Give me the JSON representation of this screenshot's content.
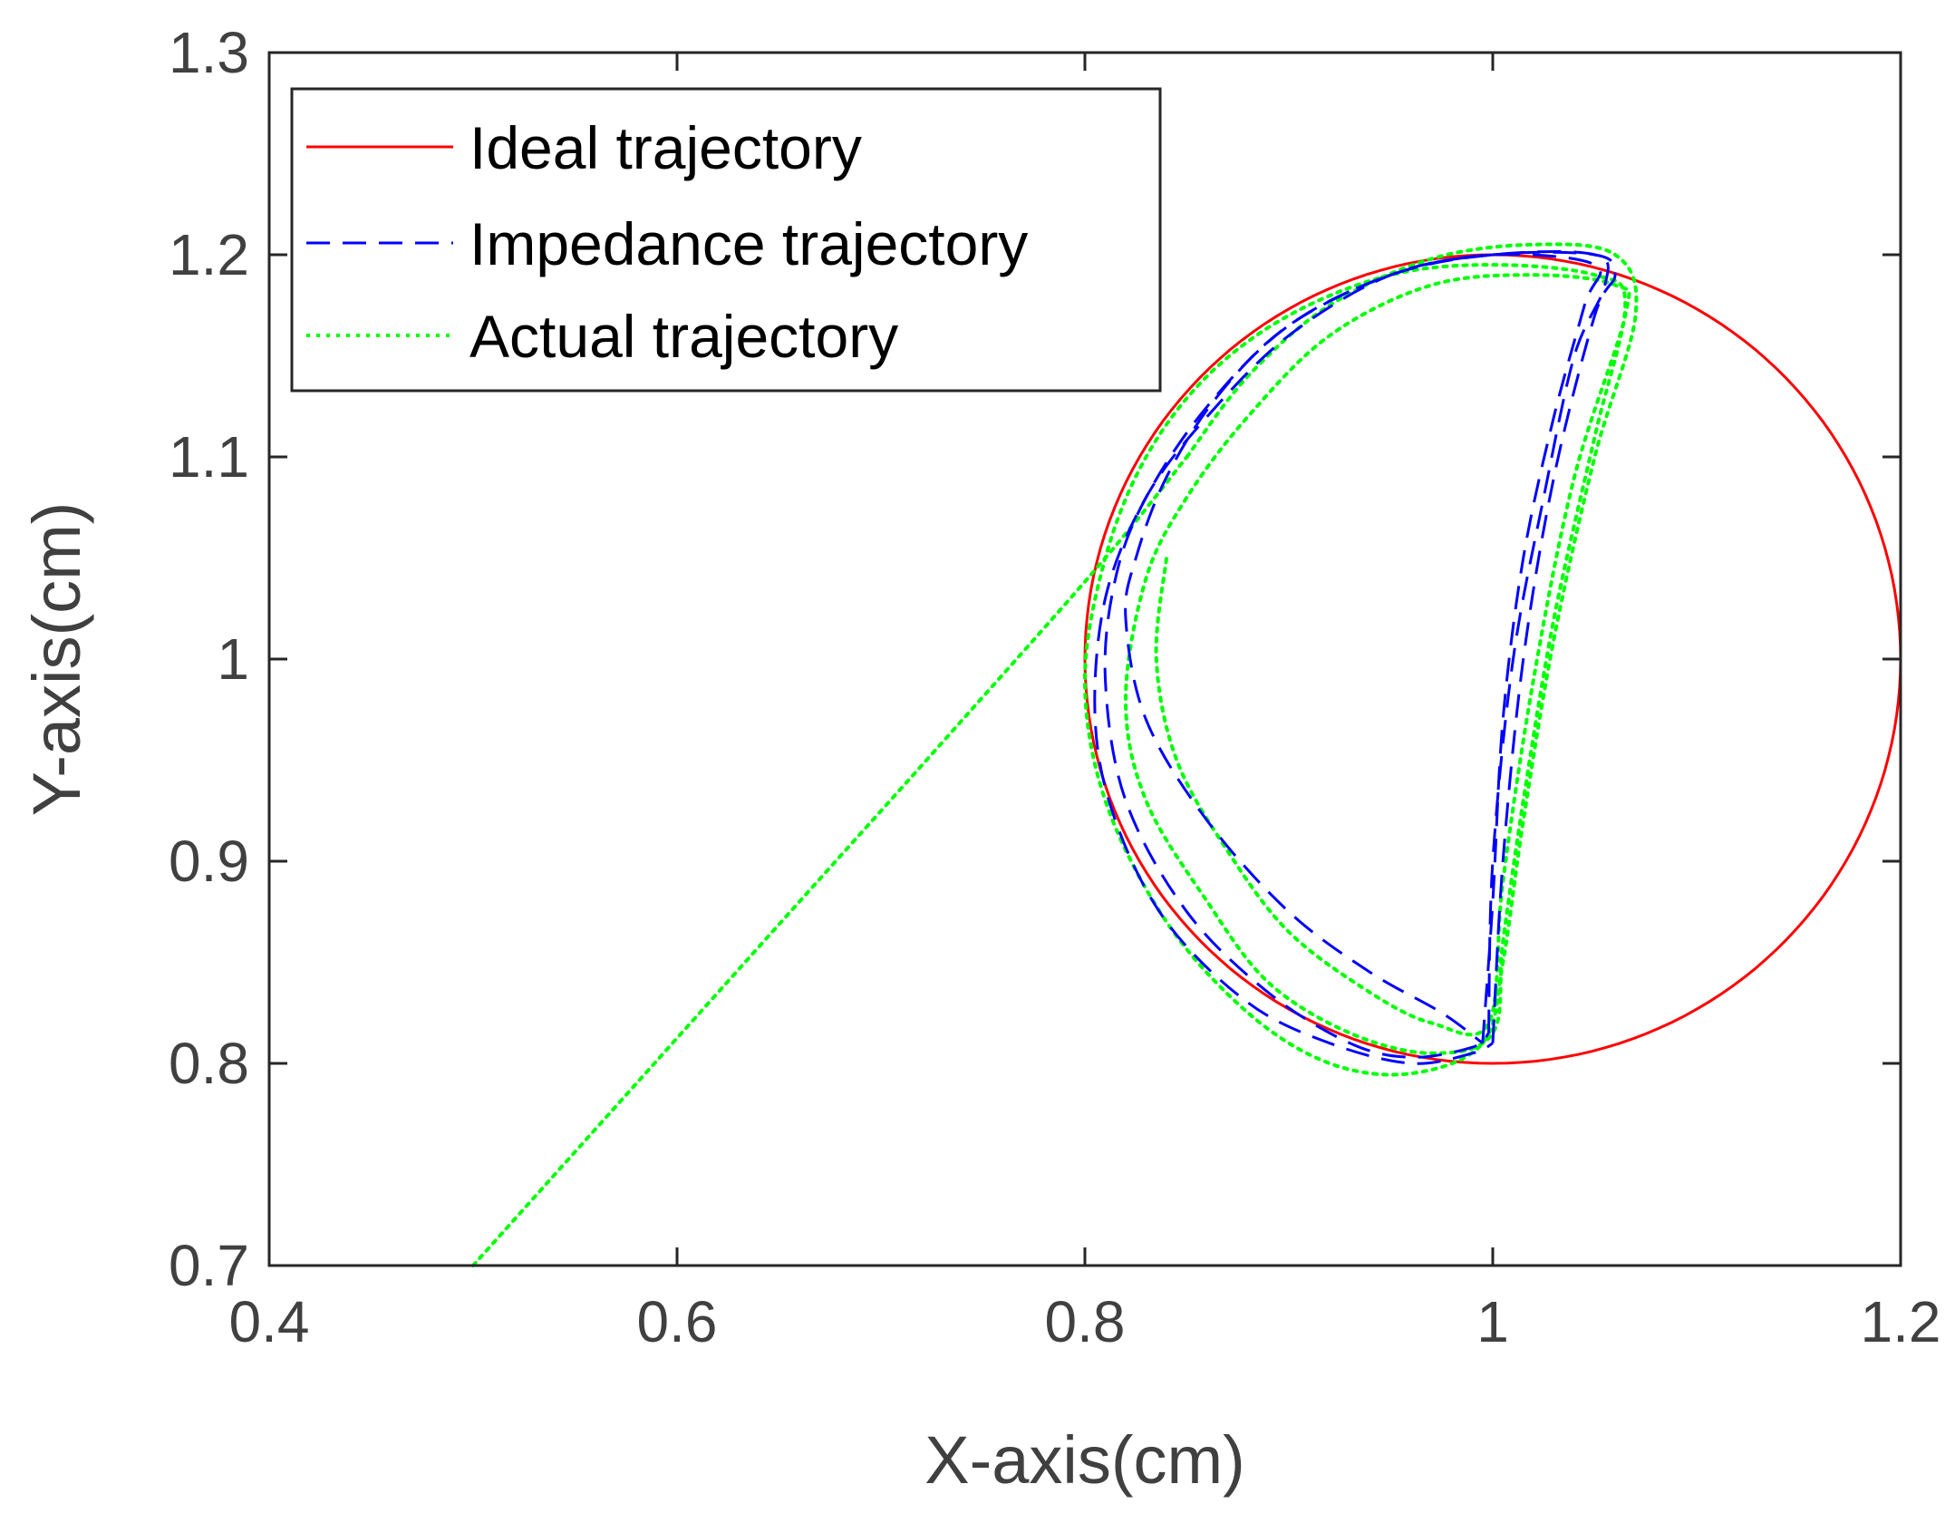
{
  "chart_data": {
    "type": "line",
    "title": "",
    "xlabel": "X-axis(cm)",
    "ylabel": "Y-axis(cm)",
    "xlim": [
      0.4,
      1.2
    ],
    "ylim": [
      0.7,
      1.3
    ],
    "xticks": [
      "0.4",
      "0.6",
      "0.8",
      "1",
      "1.2"
    ],
    "yticks": [
      "0.7",
      "0.8",
      "0.9",
      "1",
      "1.1",
      "1.2",
      "1.3"
    ],
    "grid": false,
    "legend_position": "top-left",
    "series": [
      {
        "name": "Ideal trajectory",
        "style": "solid",
        "color": "#ff0000",
        "shape": "circle",
        "center": [
          1.0,
          1.0
        ],
        "radius": 0.2
      },
      {
        "name": "Impedance trajectory",
        "style": "dashed",
        "color": "#0000ff",
        "loops": [
          [
            [
              1.0,
              0.81
            ],
            [
              1.005,
              0.9
            ],
            [
              1.015,
              1.0
            ],
            [
              1.03,
              1.09
            ],
            [
              1.05,
              1.17
            ],
            [
              1.06,
              1.19
            ],
            [
              1.05,
              1.2
            ],
            [
              1.0,
              1.2
            ],
            [
              0.95,
              1.19
            ],
            [
              0.9,
              1.16
            ],
            [
              0.86,
              1.12
            ],
            [
              0.83,
              1.08
            ],
            [
              0.81,
              1.03
            ],
            [
              0.805,
              0.97
            ],
            [
              0.815,
              0.92
            ],
            [
              0.84,
              0.87
            ],
            [
              0.88,
              0.83
            ],
            [
              0.92,
              0.81
            ],
            [
              0.96,
              0.8
            ],
            [
              0.99,
              0.805
            ],
            [
              1.0,
              0.81
            ]
          ],
          [
            [
              0.998,
              0.815
            ],
            [
              1.0,
              0.9
            ],
            [
              1.01,
              1.0
            ],
            [
              1.025,
              1.08
            ],
            [
              1.04,
              1.15
            ],
            [
              1.055,
              1.185
            ],
            [
              1.05,
              1.2
            ],
            [
              1.0,
              1.2
            ],
            [
              0.95,
              1.19
            ],
            [
              0.9,
              1.165
            ],
            [
              0.86,
              1.125
            ],
            [
              0.83,
              1.08
            ],
            [
              0.815,
              1.04
            ],
            [
              0.81,
              0.99
            ],
            [
              0.82,
              0.93
            ],
            [
              0.85,
              0.875
            ],
            [
              0.89,
              0.835
            ],
            [
              0.93,
              0.81
            ],
            [
              0.96,
              0.803
            ],
            [
              0.99,
              0.808
            ],
            [
              0.998,
              0.815
            ]
          ],
          [
            [
              0.995,
              0.81
            ],
            [
              1.0,
              0.88
            ],
            [
              1.005,
              0.97
            ],
            [
              1.015,
              1.05
            ],
            [
              1.03,
              1.12
            ],
            [
              1.045,
              1.175
            ],
            [
              1.05,
              1.195
            ],
            [
              1.0,
              1.2
            ],
            [
              0.95,
              1.19
            ],
            [
              0.9,
              1.165
            ],
            [
              0.865,
              1.13
            ],
            [
              0.84,
              1.09
            ],
            [
              0.825,
              1.05
            ],
            [
              0.82,
              1.02
            ],
            [
              0.83,
              0.97
            ],
            [
              0.86,
              0.92
            ],
            [
              0.9,
              0.875
            ],
            [
              0.94,
              0.845
            ],
            [
              0.975,
              0.825
            ],
            [
              0.995,
              0.81
            ]
          ]
        ]
      },
      {
        "name": "Actual trajectory",
        "style": "dotted",
        "color": "#00ff00",
        "approach": [
          [
            0.5,
            0.7
          ],
          [
            0.58,
            0.79
          ],
          [
            0.66,
            0.88
          ],
          [
            0.74,
            0.97
          ],
          [
            0.81,
            1.05
          ],
          [
            0.85,
            1.1
          ]
        ],
        "loops": [
          [
            [
              0.85,
              1.1
            ],
            [
              0.88,
              1.14
            ],
            [
              0.92,
              1.175
            ],
            [
              0.97,
              1.198
            ],
            [
              1.02,
              1.205
            ],
            [
              1.06,
              1.2
            ],
            [
              1.07,
              1.17
            ],
            [
              1.05,
              1.1
            ],
            [
              1.03,
              1.01
            ],
            [
              1.015,
              0.92
            ],
            [
              1.005,
              0.85
            ],
            [
              0.995,
              0.81
            ],
            [
              0.96,
              0.795
            ],
            [
              0.92,
              0.8
            ],
            [
              0.88,
              0.825
            ],
            [
              0.84,
              0.87
            ],
            [
              0.81,
              0.93
            ],
            [
              0.8,
              0.99
            ],
            [
              0.81,
              1.05
            ],
            [
              0.83,
              1.1
            ],
            [
              0.86,
              1.14
            ],
            [
              0.9,
              1.17
            ],
            [
              0.95,
              1.19
            ],
            [
              1.0,
              1.195
            ],
            [
              1.05,
              1.19
            ],
            [
              1.065,
              1.175
            ],
            [
              1.05,
              1.11
            ],
            [
              1.03,
              1.02
            ],
            [
              1.015,
              0.93
            ],
            [
              1.005,
              0.86
            ],
            [
              1.0,
              0.815
            ],
            [
              0.97,
              0.805
            ],
            [
              0.93,
              0.815
            ],
            [
              0.89,
              0.84
            ],
            [
              0.86,
              0.88
            ],
            [
              0.83,
              0.93
            ],
            [
              0.82,
              0.98
            ],
            [
              0.83,
              1.04
            ],
            [
              0.85,
              1.08
            ],
            [
              0.88,
              1.12
            ],
            [
              0.92,
              1.16
            ],
            [
              0.97,
              1.185
            ],
            [
              1.02,
              1.19
            ],
            [
              1.06,
              1.185
            ],
            [
              1.065,
              1.17
            ],
            [
              1.04,
              1.09
            ],
            [
              1.02,
              0.99
            ],
            [
              1.005,
              0.89
            ],
            [
              0.998,
              0.82
            ],
            [
              0.97,
              0.82
            ],
            [
              0.94,
              0.835
            ],
            [
              0.9,
              0.865
            ],
            [
              0.87,
              0.905
            ],
            [
              0.845,
              0.95
            ],
            [
              0.835,
              1.0
            ],
            [
              0.84,
              1.05
            ]
          ]
        ]
      }
    ]
  }
}
